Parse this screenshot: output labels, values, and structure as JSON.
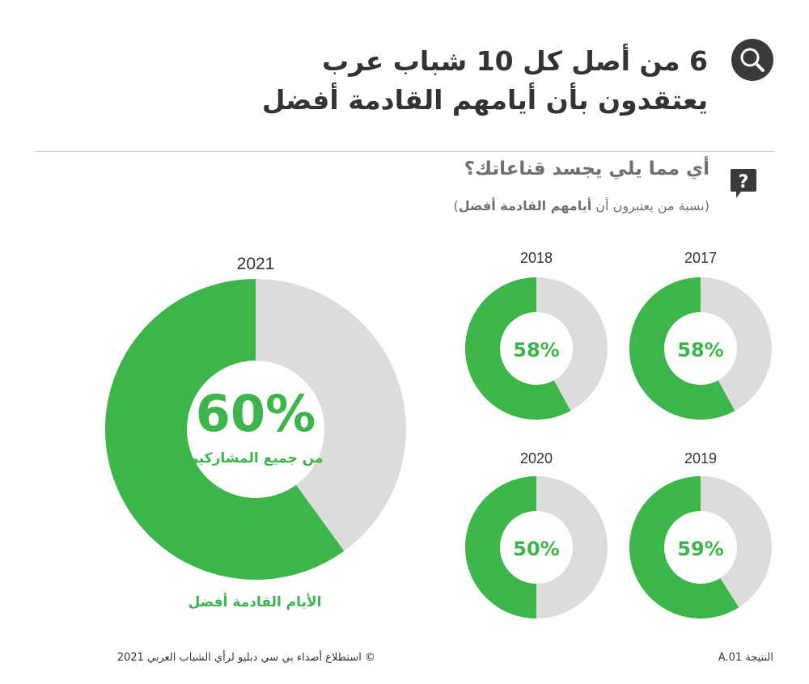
{
  "header": {
    "title_line1": "6 من أصل كل 10 شباب عرب",
    "title_line2": "يعتقدون بأن أيامهم القادمة أفضل",
    "search_icon": "search-icon"
  },
  "question": {
    "icon": "speech-bubble-question-icon",
    "text": "أي مما يلي يجسد قناعاتك؟",
    "subtitle_prefix": "(نسبة من يعتبرون أن ",
    "subtitle_bold": "أيامهم القادمة أفضل",
    "subtitle_suffix": ")"
  },
  "colors": {
    "accent": "#3cb54a",
    "remainder": "#dcdcdc",
    "dark": "#3a3a3a"
  },
  "chart_data": {
    "type": "pie",
    "title": "أي مما يلي يجسد قناعاتك؟",
    "series": [
      {
        "year": "2021",
        "value": 60,
        "label": "60%"
      },
      {
        "year": "2018",
        "value": 58,
        "label": "58%"
      },
      {
        "year": "2017",
        "value": 58,
        "label": "58%"
      },
      {
        "year": "2020",
        "value": 50,
        "label": "50%"
      },
      {
        "year": "2019",
        "value": 59,
        "label": "59%"
      }
    ],
    "main_sublabel": "من جميع المشاركين",
    "main_caption": "الأيام القادمة أفضل"
  },
  "footer": {
    "source": "©  استطلاع أصداء بي سي دبليو لرأي الشباب العربي 2021",
    "finding": "النتيجة A.01"
  }
}
